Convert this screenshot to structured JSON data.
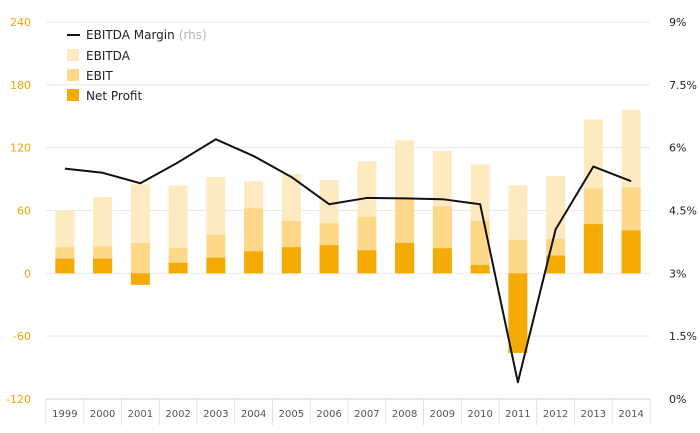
{
  "chart_data": {
    "type": "bar",
    "categories": [
      "1999",
      "2000",
      "2001",
      "2002",
      "2003",
      "2004",
      "2005",
      "2006",
      "2007",
      "2008",
      "2009",
      "2010",
      "2011",
      "2012",
      "2013",
      "2014"
    ],
    "series": [
      {
        "name": "EBITDA",
        "color": "#fdeac0",
        "values": [
          60,
          73,
          85,
          84,
          92,
          88,
          95,
          89,
          107,
          127,
          117,
          104,
          84,
          93,
          147,
          156
        ]
      },
      {
        "name": "EBIT",
        "color": "#fdd888",
        "values": [
          25,
          26,
          29,
          24,
          37,
          62,
          50,
          48,
          54,
          71,
          64,
          50,
          32,
          33,
          81,
          82
        ]
      },
      {
        "name": "Net Profit",
        "color": "#f5ab05",
        "values": [
          14,
          14,
          -11,
          10,
          15,
          21,
          25,
          27,
          22,
          29,
          24,
          8,
          -76,
          17,
          47,
          41
        ]
      },
      {
        "name": "EBITDA Margin",
        "note": "(rhs)",
        "color": "#111111",
        "axis": "right",
        "values": [
          5.5,
          5.4,
          5.15,
          5.65,
          6.2,
          5.8,
          5.3,
          4.65,
          4.8,
          4.79,
          4.77,
          4.65,
          0.4,
          4.05,
          5.55,
          5.2
        ]
      }
    ],
    "yLeft": {
      "min": -120,
      "max": 240,
      "ticks": [
        -120,
        -60,
        0,
        60,
        120,
        180,
        240
      ],
      "tick_labels": [
        "-120",
        "-60",
        "0",
        "60",
        "120",
        "180",
        "240"
      ]
    },
    "yRight": {
      "min": 0,
      "max": 9,
      "ticks": [
        0,
        1.5,
        3,
        4.5,
        6,
        7.5,
        9
      ],
      "tick_labels": [
        "0%",
        "1.5%",
        "3%",
        "4.5%",
        "6%",
        "7.5%",
        "9%"
      ]
    },
    "grid": true,
    "legend": "top-left",
    "colors": {
      "left_axis": "#f0a500",
      "right_axis": "#222222",
      "grid": "#e8e8e8"
    }
  }
}
